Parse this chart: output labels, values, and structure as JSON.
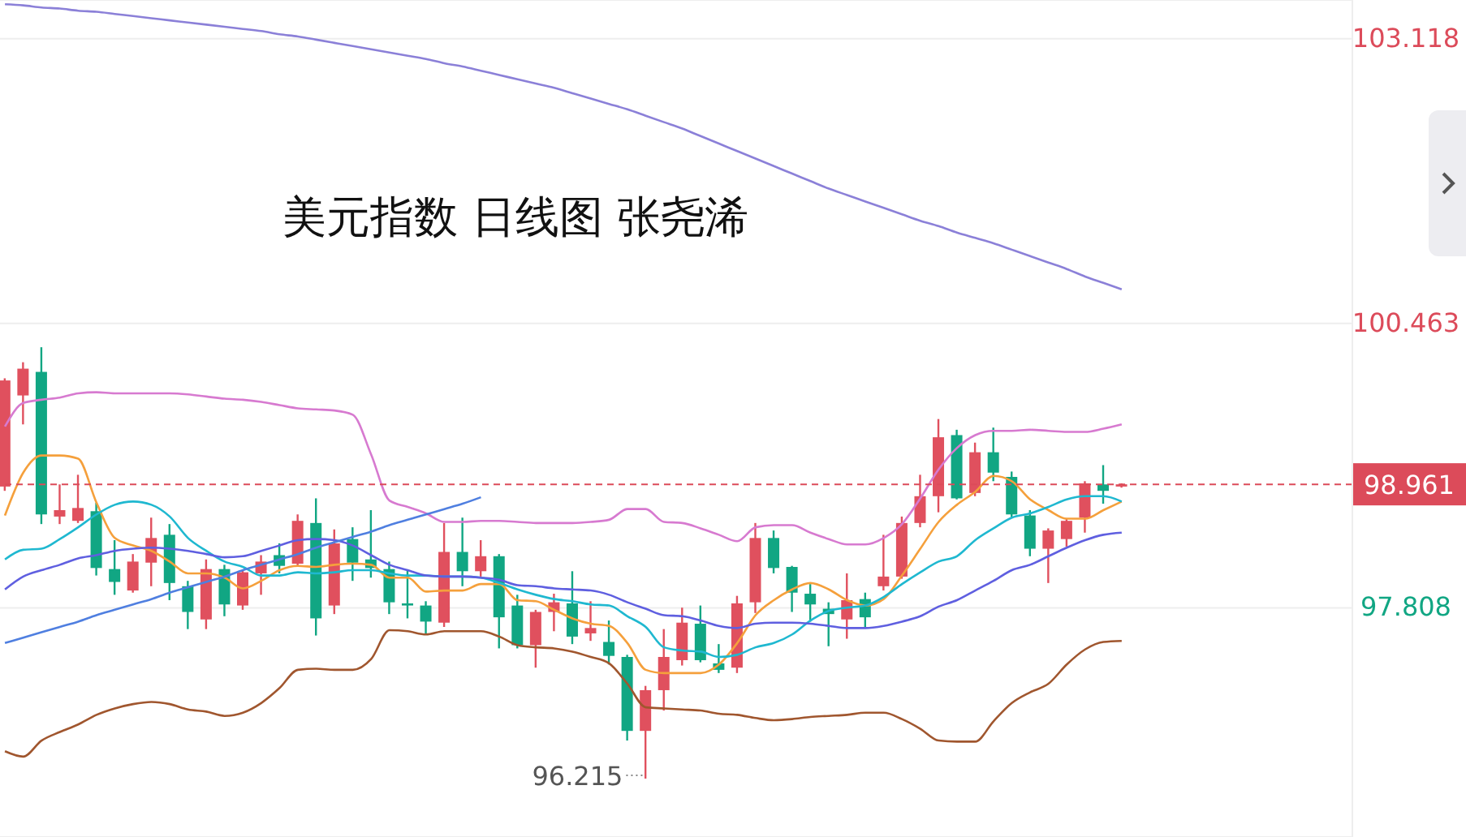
{
  "chart_data": {
    "type": "candlestick",
    "title": "美元指数 日线图 张尧浠",
    "categories": [
      null,
      null,
      null,
      null,
      null,
      null,
      null,
      null,
      null,
      null,
      null,
      null,
      null,
      null,
      null,
      null,
      null,
      null,
      null,
      null,
      null,
      null,
      null,
      null,
      null,
      null,
      null,
      null,
      null,
      null,
      null,
      null,
      null,
      null,
      null,
      null,
      null,
      null,
      null,
      null,
      null,
      null,
      null,
      null,
      null,
      null,
      null,
      null,
      null,
      null,
      null,
      null,
      null,
      null,
      null,
      null,
      null,
      null,
      null,
      null,
      null,
      null
    ],
    "ohlc": [
      [
        98.94,
        99.95,
        98.9,
        99.93
      ],
      [
        99.79,
        100.1,
        99.52,
        100.04
      ],
      [
        100.01,
        100.24,
        98.59,
        98.68
      ],
      [
        98.66,
        98.96,
        98.59,
        98.72
      ],
      [
        98.62,
        99.05,
        98.6,
        98.74
      ],
      [
        98.71,
        98.79,
        98.11,
        98.18
      ],
      [
        98.17,
        98.44,
        97.93,
        98.05
      ],
      [
        97.97,
        98.31,
        97.95,
        98.24
      ],
      [
        98.23,
        98.65,
        98.01,
        98.46
      ],
      [
        98.49,
        98.59,
        97.88,
        98.04
      ],
      [
        98.01,
        98.06,
        97.61,
        97.77
      ],
      [
        97.7,
        98.26,
        97.61,
        98.17
      ],
      [
        98.17,
        98.21,
        97.73,
        97.84
      ],
      [
        97.83,
        98.16,
        97.79,
        98.14
      ],
      [
        98.13,
        98.3,
        97.93,
        98.24
      ],
      [
        98.3,
        98.41,
        98.13,
        98.2
      ],
      [
        98.22,
        98.68,
        98.2,
        98.62
      ],
      [
        98.6,
        98.83,
        97.55,
        97.71
      ],
      [
        97.83,
        98.54,
        97.75,
        98.41
      ],
      [
        98.45,
        98.56,
        98.06,
        98.23
      ],
      [
        98.26,
        98.72,
        98.09,
        98.18
      ],
      [
        98.17,
        98.24,
        97.75,
        97.86
      ],
      [
        97.85,
        98.16,
        97.71,
        97.83
      ],
      [
        97.83,
        97.87,
        97.56,
        97.68
      ],
      [
        97.67,
        98.6,
        97.63,
        98.33
      ],
      [
        98.33,
        98.65,
        98.01,
        98.15
      ],
      [
        98.15,
        98.44,
        98.1,
        98.29
      ],
      [
        98.29,
        98.31,
        97.43,
        97.72
      ],
      [
        97.83,
        97.93,
        97.43,
        97.46
      ],
      [
        97.46,
        97.79,
        97.25,
        97.77
      ],
      [
        97.77,
        97.94,
        97.59,
        97.86
      ],
      [
        97.85,
        98.15,
        97.47,
        97.54
      ],
      [
        97.57,
        97.87,
        97.5,
        97.62
      ],
      [
        97.49,
        97.69,
        97.28,
        97.36
      ],
      [
        97.35,
        97.37,
        96.57,
        96.66
      ],
      [
        96.66,
        97.08,
        96.215,
        97.04
      ],
      [
        97.04,
        97.61,
        96.85,
        97.35
      ],
      [
        97.32,
        97.81,
        97.27,
        97.67
      ],
      [
        97.66,
        97.83,
        97.3,
        97.32
      ],
      [
        97.29,
        97.47,
        97.2,
        97.23
      ],
      [
        97.25,
        97.92,
        97.2,
        97.85
      ],
      [
        97.86,
        98.6,
        97.76,
        98.46
      ],
      [
        98.46,
        98.53,
        98.13,
        98.18
      ],
      [
        98.19,
        98.2,
        97.77,
        97.95
      ],
      [
        97.94,
        98.03,
        97.68,
        97.84
      ],
      [
        97.8,
        97.86,
        97.45,
        97.75
      ],
      [
        97.7,
        98.13,
        97.52,
        97.88
      ],
      [
        97.89,
        97.95,
        97.63,
        97.72
      ],
      [
        98.01,
        98.49,
        97.97,
        98.1
      ],
      [
        98.1,
        98.66,
        98.08,
        98.6
      ],
      [
        98.6,
        99.05,
        98.56,
        98.85
      ],
      [
        98.85,
        99.57,
        98.7,
        99.4
      ],
      [
        99.42,
        99.47,
        98.82,
        98.83
      ],
      [
        98.88,
        99.35,
        98.85,
        99.26
      ],
      [
        99.26,
        99.49,
        98.99,
        99.07
      ],
      [
        99.03,
        99.08,
        98.65,
        98.68
      ],
      [
        98.67,
        98.72,
        98.29,
        98.36
      ],
      [
        98.36,
        98.55,
        98.04,
        98.53
      ],
      [
        98.45,
        98.64,
        98.38,
        98.62
      ],
      [
        98.65,
        98.99,
        98.51,
        98.97
      ],
      [
        98.96,
        99.14,
        98.78,
        98.9
      ],
      [
        98.94,
        98.97,
        98.93,
        98.961
      ]
    ],
    "colors": [
      "#e0505e",
      "#e0505e",
      "#11a683",
      "#e0505e",
      "#e0505e",
      "#11a683",
      "#11a683",
      "#e0505e",
      "#e0505e",
      "#11a683",
      "#11a683",
      "#e0505e",
      "#11a683",
      "#e0505e",
      "#e0505e",
      "#11a683",
      "#e0505e",
      "#11a683",
      "#e0505e",
      "#11a683",
      "#11a683",
      "#11a683",
      "#11a683",
      "#11a683",
      "#e0505e",
      "#11a683",
      "#e0505e",
      "#11a683",
      "#11a683",
      "#e0505e",
      "#e0505e",
      "#11a683",
      "#e0505e",
      "#11a683",
      "#11a683",
      "#e0505e",
      "#e0505e",
      "#e0505e",
      "#11a683",
      "#11a683",
      "#e0505e",
      "#e0505e",
      "#11a683",
      "#11a683",
      "#11a683",
      "#11a683",
      "#e0505e",
      "#11a683",
      "#e0505e",
      "#e0505e",
      "#e0505e",
      "#e0505e",
      "#11a683",
      "#e0505e",
      "#11a683",
      "#11a683",
      "#11a683",
      "#e0505e",
      "#e0505e",
      "#e0505e",
      "#11a683",
      "#e0505e"
    ],
    "series": [
      {
        "type": "line",
        "color": "#8b80d8",
        "values": [
          103.44,
          103.43,
          103.41,
          103.4,
          103.38,
          103.37,
          103.35,
          103.33,
          103.31,
          103.29,
          103.27,
          103.25,
          103.23,
          103.21,
          103.19,
          103.16,
          103.14,
          103.11,
          103.08,
          103.05,
          103.02,
          102.99,
          102.96,
          102.93,
          102.89,
          102.86,
          102.82,
          102.78,
          102.74,
          102.7,
          102.66,
          102.61,
          102.56,
          102.51,
          102.46,
          102.4,
          102.34,
          102.28,
          102.21,
          102.14,
          102.07,
          102.0,
          101.93,
          101.86,
          101.79,
          101.72,
          101.66,
          101.6,
          101.54,
          101.48,
          101.42,
          101.37,
          101.31,
          101.26,
          101.21,
          101.15,
          101.09,
          101.03,
          100.97,
          100.9,
          100.84,
          100.78
        ]
      },
      {
        "type": "line",
        "color": "#d77ad0",
        "values": [
          99.5,
          99.72,
          99.75,
          99.77,
          99.81,
          99.82,
          99.81,
          99.81,
          99.81,
          99.81,
          99.8,
          99.78,
          99.76,
          99.75,
          99.73,
          99.7,
          99.67,
          99.66,
          99.65,
          99.61,
          99.24,
          98.81,
          98.75,
          98.69,
          98.61,
          98.61,
          98.62,
          98.62,
          98.61,
          98.6,
          98.6,
          98.6,
          98.61,
          98.63,
          98.73,
          98.73,
          98.61,
          98.6,
          98.55,
          98.49,
          98.43,
          98.56,
          98.58,
          98.58,
          98.51,
          98.45,
          98.4,
          98.4,
          98.46,
          98.59,
          98.83,
          99.1,
          99.3,
          99.42,
          99.46,
          99.46,
          99.47,
          99.46,
          99.45,
          99.45,
          99.48,
          99.52
        ]
      },
      {
        "type": "line",
        "color": "#a0562e",
        "values": [
          96.47,
          96.42,
          96.57,
          96.65,
          96.72,
          96.81,
          96.87,
          96.91,
          96.93,
          96.91,
          96.86,
          96.84,
          96.8,
          96.83,
          96.92,
          97.06,
          97.23,
          97.24,
          97.23,
          97.23,
          97.33,
          97.6,
          97.59,
          97.56,
          97.59,
          97.59,
          97.59,
          97.54,
          97.46,
          97.44,
          97.43,
          97.4,
          97.35,
          97.29,
          97.1,
          96.88,
          96.87,
          96.86,
          96.85,
          96.82,
          96.81,
          96.78,
          96.76,
          96.77,
          96.79,
          96.8,
          96.81,
          96.83,
          96.83,
          96.77,
          96.68,
          96.57,
          96.56,
          96.56,
          96.75,
          96.92,
          97.02,
          97.1,
          97.28,
          97.42,
          97.49,
          97.5
        ]
      },
      {
        "type": "line",
        "color": "#f5a03c",
        "values": [
          98.67,
          99.07,
          99.23,
          99.23,
          99.2,
          98.79,
          98.46,
          98.39,
          98.34,
          98.24,
          98.13,
          98.13,
          98.09,
          97.99,
          98.06,
          98.16,
          98.2,
          98.19,
          98.21,
          98.22,
          98.21,
          98.09,
          98.09,
          97.96,
          97.97,
          97.97,
          98.03,
          98.03,
          97.88,
          97.87,
          97.79,
          97.71,
          97.66,
          97.64,
          97.48,
          97.23,
          97.2,
          97.2,
          97.2,
          97.28,
          97.48,
          97.74,
          97.88,
          97.98,
          98.04,
          97.98,
          97.88,
          97.83,
          97.89,
          98.11,
          98.36,
          98.61,
          98.77,
          98.89,
          99.04,
          98.99,
          98.82,
          98.72,
          98.64,
          98.64,
          98.72,
          98.8
        ]
      },
      {
        "type": "line",
        "color": "#1fb8d0",
        "values": [
          98.26,
          98.35,
          98.36,
          98.45,
          98.56,
          98.68,
          98.77,
          98.8,
          98.77,
          98.66,
          98.46,
          98.34,
          98.24,
          98.19,
          98.11,
          98.11,
          98.14,
          98.13,
          98.14,
          98.16,
          98.16,
          98.13,
          98.11,
          98.11,
          98.1,
          98.1,
          98.09,
          98.04,
          97.98,
          97.93,
          97.89,
          97.87,
          97.84,
          97.83,
          97.73,
          97.63,
          97.44,
          97.41,
          97.4,
          97.35,
          97.37,
          97.44,
          97.48,
          97.56,
          97.69,
          97.78,
          97.81,
          97.83,
          97.91,
          98.03,
          98.14,
          98.24,
          98.29,
          98.44,
          98.55,
          98.65,
          98.69,
          98.75,
          98.82,
          98.85,
          98.85,
          98.8
        ]
      },
      {
        "type": "line",
        "color": "#5f5fe0",
        "values": [
          97.98,
          98.1,
          98.16,
          98.21,
          98.27,
          98.3,
          98.34,
          98.36,
          98.37,
          98.36,
          98.34,
          98.31,
          98.28,
          98.29,
          98.34,
          98.39,
          98.44,
          98.45,
          98.44,
          98.39,
          98.3,
          98.21,
          98.16,
          98.11,
          98.1,
          98.1,
          98.09,
          98.07,
          98.02,
          98.01,
          97.99,
          97.98,
          97.97,
          97.93,
          97.86,
          97.8,
          97.74,
          97.73,
          97.69,
          97.64,
          97.62,
          97.66,
          97.67,
          97.67,
          97.66,
          97.64,
          97.62,
          97.62,
          97.64,
          97.68,
          97.73,
          97.82,
          97.88,
          97.97,
          98.06,
          98.16,
          98.21,
          98.29,
          98.37,
          98.44,
          98.49,
          98.51
        ]
      },
      {
        "type": "line",
        "color": "#4f7fe0",
        "values": [
          97.48,
          97.53,
          97.58,
          97.63,
          97.68,
          97.74,
          97.79,
          97.84,
          97.89,
          97.95,
          98.0,
          98.05,
          98.1,
          98.16,
          98.21,
          98.26,
          98.31,
          98.37,
          98.42,
          98.47,
          98.52,
          98.58,
          98.63,
          98.68,
          98.73,
          98.78,
          98.84,
          null,
          null,
          null,
          null,
          null,
          null,
          null,
          null,
          null,
          null,
          null,
          null,
          null,
          null,
          null,
          null,
          null,
          null,
          null,
          null,
          null,
          null,
          null,
          null,
          null,
          null,
          null,
          null,
          null,
          null,
          null,
          null,
          null,
          null,
          null
        ]
      }
    ],
    "ylim": [
      95.67,
      103.48
    ],
    "yticks": [
      103.118,
      100.463,
      97.808
    ],
    "grid": "y",
    "ref_lines": [
      {
        "axis": "y",
        "value": 98.961,
        "label": "98.961",
        "color": "#dc4b5a",
        "line_style": "dashed"
      }
    ],
    "annotations": [
      "96.215"
    ]
  }
}
